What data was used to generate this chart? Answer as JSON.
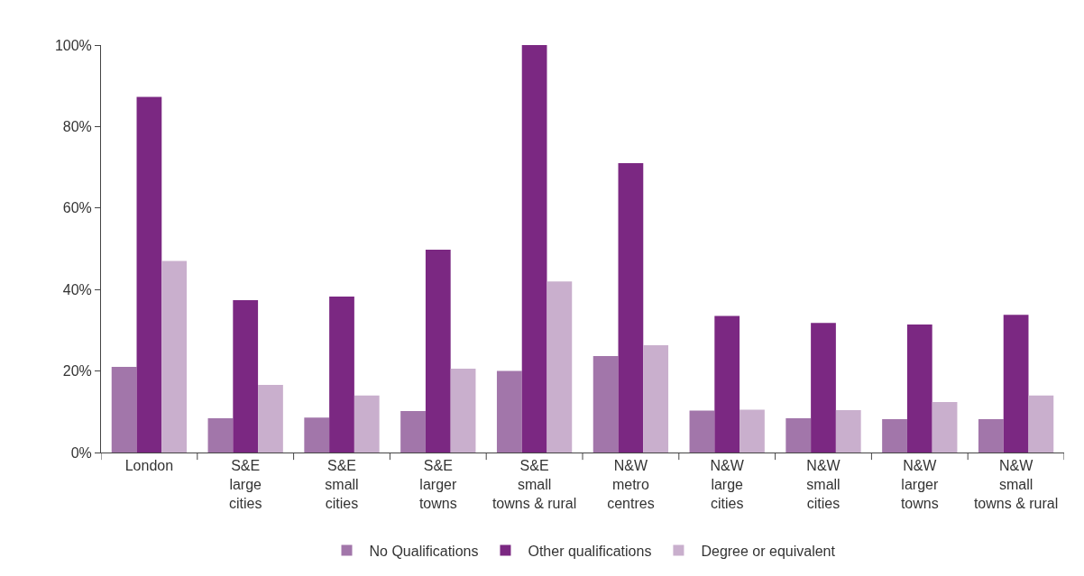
{
  "chart_data": {
    "type": "bar",
    "categories": [
      "London",
      "S&E\nlarge\ncities",
      "S&E\nsmall\ncities",
      "S&E\nlarger\ntowns",
      "S&E\nsmall\ntowns & rural",
      "N&W\nmetro\ncentres",
      "N&W\nlarge\ncities",
      "N&W\nsmall\ncities",
      "N&W\nlarger\ntowns",
      "N&W\nsmall\ntowns & rural"
    ],
    "series": [
      {
        "name": "No Qualifications",
        "color": "#a276aa",
        "values": [
          21,
          8.4,
          8.6,
          10.2,
          20,
          23.7,
          10.3,
          8.4,
          8.2,
          8.2
        ]
      },
      {
        "name": "Other qualifications",
        "color": "#7b2882",
        "values": [
          87.3,
          37.4,
          38.3,
          49.8,
          100,
          71,
          33.5,
          31.8,
          31.4,
          33.8
        ]
      },
      {
        "name": "Degree or equivalent",
        "color": "#c9afcd",
        "values": [
          47,
          16.6,
          14,
          20.6,
          42,
          26.3,
          10.5,
          10.4,
          12.4,
          14
        ]
      }
    ],
    "ylim": [
      0,
      100
    ],
    "yticks": [
      {
        "value": 0,
        "label": "0%"
      },
      {
        "value": 20,
        "label": "20%"
      },
      {
        "value": 40,
        "label": "40%"
      },
      {
        "value": 60,
        "label": "60%"
      },
      {
        "value": 80,
        "label": "80%"
      },
      {
        "value": 100,
        "label": "100%"
      }
    ],
    "grid": false,
    "legend": "bottom"
  }
}
